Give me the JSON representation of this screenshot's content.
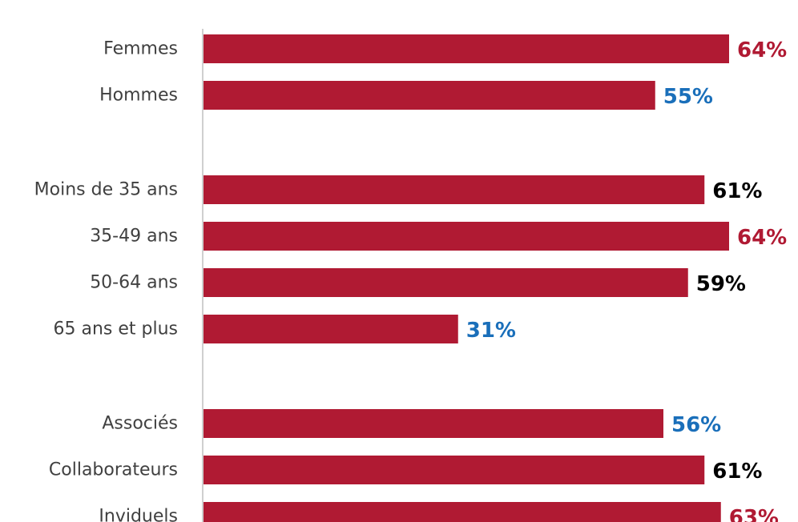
{
  "chart_data": {
    "type": "bar",
    "orientation": "horizontal",
    "categories": [
      "Femmes",
      "Hommes",
      "Moins de 35 ans",
      "35-49 ans",
      "50-64 ans",
      "65 ans et plus",
      "Associés",
      "Collaborateurs",
      "Inviduels"
    ],
    "groups": [
      [
        "Femmes",
        "Hommes"
      ],
      [
        "Moins de 35 ans",
        "35-49 ans",
        "50-64 ans",
        "65 ans et plus"
      ],
      [
        "Associés",
        "Collaborateurs",
        "Inviduels"
      ]
    ],
    "values": [
      64,
      55,
      61,
      64,
      59,
      31,
      56,
      61,
      63
    ],
    "value_labels": [
      "64%",
      "55%",
      "61%",
      "64%",
      "59%",
      "31%",
      "56%",
      "61%",
      "63%"
    ],
    "value_label_colors": [
      "#b01a33",
      "#1a6fba",
      "#000000",
      "#b01a33",
      "#000000",
      "#1a6fba",
      "#1a6fba",
      "#000000",
      "#b01a33"
    ],
    "bar_color": "#b01a33",
    "axis_color": "#bfbfbf",
    "category_label_color": "#404040",
    "title": "",
    "xlabel": "",
    "ylabel": "",
    "grid": false,
    "legend": false
  }
}
